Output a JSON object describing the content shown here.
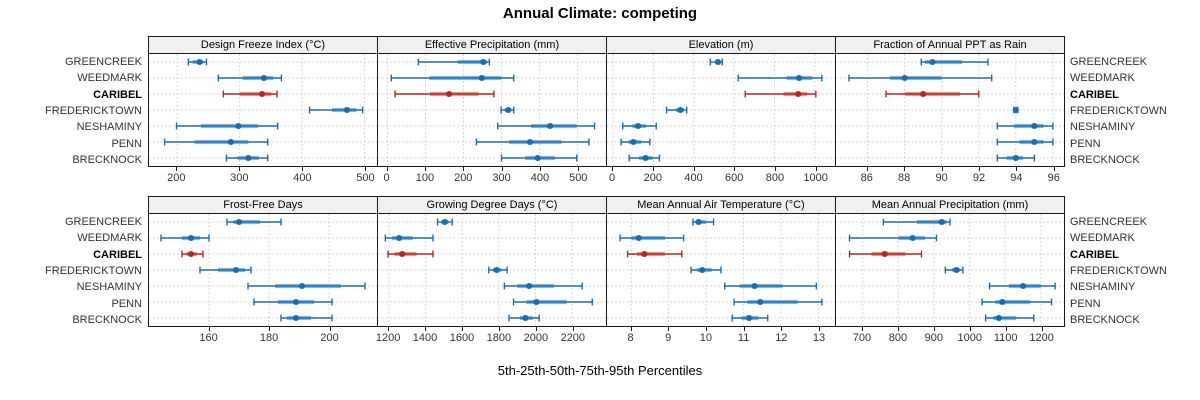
{
  "title": "Annual Climate: competing",
  "xlabel": "5th-25th-50th-75th-95th Percentiles",
  "sites": [
    "GREENCREEK",
    "WEEDMARK",
    "CARIBEL",
    "FREDERICKTOWN",
    "NESHAMINY",
    "PENN",
    "BRECKNOCK"
  ],
  "highlight_site": "CARIBEL",
  "colors": {
    "series_main": "#1c6bab",
    "series_band": "#85b8da",
    "highlight_main": "#b22720",
    "highlight_band": "#dd9b94",
    "grid": "#c9c9c9",
    "strip_bg": "#f0f0f0",
    "border": "#1a1a1a"
  },
  "chart_data": [
    {
      "type": "scatter",
      "style": "percentile-dot-whisker",
      "title": "Design Freeze Index (°C)",
      "xlim": [
        155,
        520
      ],
      "ticks": [
        200,
        300,
        400,
        500
      ],
      "series": [
        {
          "site": "GREENCREEK",
          "p5": 218,
          "p25": 225,
          "p50": 236,
          "p75": 242,
          "p95": 247
        },
        {
          "site": "WEEDMARK",
          "p5": 266,
          "p25": 305,
          "p50": 339,
          "p75": 354,
          "p95": 367
        },
        {
          "site": "CARIBEL",
          "p5": 274,
          "p25": 300,
          "p50": 336,
          "p75": 351,
          "p95": 360
        },
        {
          "site": "FREDERICKTOWN",
          "p5": 412,
          "p25": 448,
          "p50": 472,
          "p75": 487,
          "p95": 497
        },
        {
          "site": "NESHAMINY",
          "p5": 199,
          "p25": 238,
          "p50": 298,
          "p75": 330,
          "p95": 361
        },
        {
          "site": "PENN",
          "p5": 180,
          "p25": 228,
          "p50": 286,
          "p75": 314,
          "p95": 345
        },
        {
          "site": "BRECKNOCK",
          "p5": 279,
          "p25": 297,
          "p50": 314,
          "p75": 331,
          "p95": 345
        }
      ]
    },
    {
      "type": "scatter",
      "style": "percentile-dot-whisker",
      "title": "Effective Precipitation (mm)",
      "xlim": [
        -25,
        575
      ],
      "ticks": [
        0,
        100,
        200,
        300,
        400,
        500
      ],
      "series": [
        {
          "site": "GREENCREEK",
          "p5": 81,
          "p25": 185,
          "p50": 252,
          "p75": 262,
          "p95": 268
        },
        {
          "site": "WEEDMARK",
          "p5": 10,
          "p25": 110,
          "p50": 248,
          "p75": 300,
          "p95": 332
        },
        {
          "site": "CARIBEL",
          "p5": 20,
          "p25": 112,
          "p50": 162,
          "p75": 240,
          "p95": 280
        },
        {
          "site": "FREDERICKTOWN",
          "p5": 299,
          "p25": 308,
          "p50": 318,
          "p75": 325,
          "p95": 332
        },
        {
          "site": "NESHAMINY",
          "p5": 290,
          "p25": 378,
          "p50": 428,
          "p75": 498,
          "p95": 545
        },
        {
          "site": "PENN",
          "p5": 234,
          "p25": 320,
          "p50": 375,
          "p75": 458,
          "p95": 530
        },
        {
          "site": "BRECKNOCK",
          "p5": 300,
          "p25": 362,
          "p50": 395,
          "p75": 440,
          "p95": 498
        }
      ]
    },
    {
      "type": "scatter",
      "style": "percentile-dot-whisker",
      "title": "Elevation (m)",
      "xlim": [
        -30,
        1100
      ],
      "ticks": [
        0,
        200,
        400,
        600,
        800,
        1000
      ],
      "series": [
        {
          "site": "GREENCREEK",
          "p5": 482,
          "p25": 505,
          "p50": 520,
          "p75": 532,
          "p95": 541
        },
        {
          "site": "WEEDMARK",
          "p5": 620,
          "p25": 860,
          "p50": 922,
          "p75": 988,
          "p95": 1035
        },
        {
          "site": "CARIBEL",
          "p5": 655,
          "p25": 845,
          "p50": 918,
          "p75": 962,
          "p95": 1005
        },
        {
          "site": "FREDERICKTOWN",
          "p5": 265,
          "p25": 312,
          "p50": 334,
          "p75": 351,
          "p95": 365
        },
        {
          "site": "NESHAMINY",
          "p5": 48,
          "p25": 95,
          "p50": 124,
          "p75": 163,
          "p95": 214
        },
        {
          "site": "PENN",
          "p5": 40,
          "p25": 76,
          "p50": 101,
          "p75": 140,
          "p95": 182
        },
        {
          "site": "BRECKNOCK",
          "p5": 80,
          "p25": 129,
          "p50": 161,
          "p75": 196,
          "p95": 230
        }
      ]
    },
    {
      "type": "scatter",
      "style": "percentile-dot-whisker",
      "title": "Fraction of Annual PPT as Rain",
      "xlim": [
        84.3,
        96.6
      ],
      "ticks": [
        86,
        88,
        90,
        92,
        94,
        96
      ],
      "series": [
        {
          "site": "GREENCREEK",
          "p5": 88.9,
          "p25": 89.1,
          "p50": 89.5,
          "p75": 91.1,
          "p95": 92.5
        },
        {
          "site": "WEEDMARK",
          "p5": 85.0,
          "p25": 87.2,
          "p50": 88.0,
          "p75": 90.0,
          "p95": 92.7
        },
        {
          "site": "CARIBEL",
          "p5": 87.0,
          "p25": 88.0,
          "p50": 89.0,
          "p75": 91.0,
          "p95": 92.0
        },
        {
          "site": "FREDERICKTOWN",
          "p5": 93.9,
          "p25": 93.95,
          "p50": 94.0,
          "p75": 94.05,
          "p95": 94.1
        },
        {
          "site": "NESHAMINY",
          "p5": 93.0,
          "p25": 93.9,
          "p50": 95.0,
          "p75": 95.5,
          "p95": 96.0
        },
        {
          "site": "PENN",
          "p5": 93.0,
          "p25": 94.2,
          "p50": 95.0,
          "p75": 95.5,
          "p95": 96.0
        },
        {
          "site": "BRECKNOCK",
          "p5": 93.0,
          "p25": 93.5,
          "p50": 94.0,
          "p75": 94.4,
          "p95": 95.0
        }
      ]
    },
    {
      "type": "scatter",
      "style": "percentile-dot-whisker",
      "title": "Frost-Free Days",
      "xlim": [
        140,
        216
      ],
      "ticks": [
        160,
        180,
        200
      ],
      "series": [
        {
          "site": "GREENCREEK",
          "p5": 166,
          "p25": 168,
          "p50": 170,
          "p75": 177,
          "p95": 184
        },
        {
          "site": "WEEDMARK",
          "p5": 144,
          "p25": 151,
          "p50": 154,
          "p75": 157,
          "p95": 160
        },
        {
          "site": "CARIBEL",
          "p5": 151,
          "p25": 152.5,
          "p50": 154,
          "p75": 156,
          "p95": 158
        },
        {
          "site": "FREDERICKTOWN",
          "p5": 157,
          "p25": 163,
          "p50": 169,
          "p75": 172,
          "p95": 174
        },
        {
          "site": "NESHAMINY",
          "p5": 173,
          "p25": 182,
          "p50": 191,
          "p75": 204,
          "p95": 212
        },
        {
          "site": "PENN",
          "p5": 175,
          "p25": 183,
          "p50": 189,
          "p75": 195,
          "p95": 201
        },
        {
          "site": "BRECKNOCK",
          "p5": 184,
          "p25": 186,
          "p50": 189,
          "p75": 194,
          "p95": 201
        }
      ]
    },
    {
      "type": "scatter",
      "style": "percentile-dot-whisker",
      "title": "Growing Degree Days (°C)",
      "xlim": [
        1140,
        2385
      ],
      "ticks": [
        1200,
        1400,
        1600,
        1800,
        2000,
        2200
      ],
      "series": [
        {
          "site": "GREENCREEK",
          "p5": 1465,
          "p25": 1485,
          "p50": 1505,
          "p75": 1525,
          "p95": 1545
        },
        {
          "site": "WEEDMARK",
          "p5": 1180,
          "p25": 1215,
          "p50": 1255,
          "p75": 1330,
          "p95": 1440
        },
        {
          "site": "CARIBEL",
          "p5": 1195,
          "p25": 1230,
          "p50": 1272,
          "p75": 1350,
          "p95": 1440
        },
        {
          "site": "FREDERICKTOWN",
          "p5": 1745,
          "p25": 1768,
          "p50": 1788,
          "p75": 1815,
          "p95": 1845
        },
        {
          "site": "NESHAMINY",
          "p5": 1830,
          "p25": 1900,
          "p50": 1965,
          "p75": 2100,
          "p95": 2255
        },
        {
          "site": "PENN",
          "p5": 1880,
          "p25": 1950,
          "p50": 2005,
          "p75": 2170,
          "p95": 2310
        },
        {
          "site": "BRECKNOCK",
          "p5": 1855,
          "p25": 1915,
          "p50": 1945,
          "p75": 1985,
          "p95": 2020
        }
      ]
    },
    {
      "type": "scatter",
      "style": "percentile-dot-whisker",
      "title": "Mean Annual Air Temperature (°C)",
      "xlim": [
        7.35,
        13.45
      ],
      "ticks": [
        8,
        9,
        10,
        11,
        12,
        13
      ],
      "series": [
        {
          "site": "GREENCREEK",
          "p5": 9.65,
          "p25": 9.72,
          "p50": 9.8,
          "p75": 10.0,
          "p95": 10.2
        },
        {
          "site": "WEEDMARK",
          "p5": 7.7,
          "p25": 8.0,
          "p50": 8.2,
          "p75": 8.9,
          "p95": 9.4
        },
        {
          "site": "CARIBEL",
          "p5": 7.9,
          "p25": 8.15,
          "p50": 8.35,
          "p75": 8.9,
          "p95": 9.35
        },
        {
          "site": "FREDERICKTOWN",
          "p5": 9.6,
          "p25": 9.75,
          "p50": 9.9,
          "p75": 10.15,
          "p95": 10.4
        },
        {
          "site": "NESHAMINY",
          "p5": 10.5,
          "p25": 10.9,
          "p50": 11.3,
          "p75": 12.05,
          "p95": 12.95
        },
        {
          "site": "PENN",
          "p5": 10.75,
          "p25": 11.1,
          "p50": 11.45,
          "p75": 12.45,
          "p95": 13.1
        },
        {
          "site": "BRECKNOCK",
          "p5": 10.7,
          "p25": 10.95,
          "p50": 11.15,
          "p75": 11.4,
          "p95": 11.65
        }
      ]
    },
    {
      "type": "scatter",
      "style": "percentile-dot-whisker",
      "title": "Mean Annual Precipitation (mm)",
      "xlim": [
        625,
        1265
      ],
      "ticks": [
        700,
        800,
        900,
        1000,
        1100,
        1200
      ],
      "series": [
        {
          "site": "GREENCREEK",
          "p5": 758,
          "p25": 852,
          "p50": 922,
          "p75": 935,
          "p95": 945
        },
        {
          "site": "WEEDMARK",
          "p5": 663,
          "p25": 800,
          "p50": 840,
          "p75": 875,
          "p95": 907
        },
        {
          "site": "CARIBEL",
          "p5": 663,
          "p25": 725,
          "p50": 762,
          "p75": 820,
          "p95": 865
        },
        {
          "site": "FREDERICKTOWN",
          "p5": 932,
          "p25": 950,
          "p50": 963,
          "p75": 973,
          "p95": 981
        },
        {
          "site": "NESHAMINY",
          "p5": 1056,
          "p25": 1110,
          "p50": 1150,
          "p75": 1200,
          "p95": 1240
        },
        {
          "site": "PENN",
          "p5": 1035,
          "p25": 1072,
          "p50": 1092,
          "p75": 1170,
          "p95": 1230
        },
        {
          "site": "BRECKNOCK",
          "p5": 1045,
          "p25": 1066,
          "p50": 1082,
          "p75": 1130,
          "p95": 1180
        }
      ]
    }
  ]
}
